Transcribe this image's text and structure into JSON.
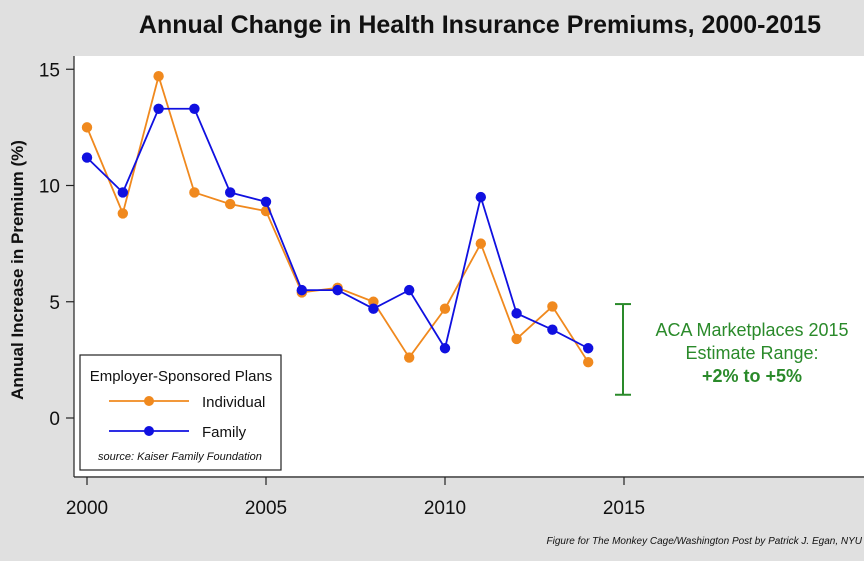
{
  "chart_data": {
    "type": "line",
    "title": "Annual Change in Health Insurance Premiums, 2000-2015",
    "xlabel": "",
    "ylabel": "Annual Increase in Premium (%)",
    "x": [
      2000,
      2001,
      2002,
      2003,
      2004,
      2005,
      2006,
      2007,
      2008,
      2009,
      2010,
      2011,
      2012,
      2013,
      2014
    ],
    "xlim": [
      1999.6,
      2022
    ],
    "ylim": [
      -2.5,
      15.5
    ],
    "xticks": [
      2000,
      2005,
      2010,
      2015
    ],
    "xtick_labels": [
      "2000",
      "2005",
      "2010",
      "2015"
    ],
    "yticks": [
      0,
      5,
      10,
      15
    ],
    "ytick_labels": [
      "0",
      "5",
      "10",
      "15"
    ],
    "grid": false,
    "series": [
      {
        "name": "Individual",
        "color": "#f0891e",
        "values": [
          12.5,
          8.8,
          14.7,
          9.7,
          9.2,
          8.9,
          5.4,
          5.6,
          5.0,
          2.6,
          4.7,
          7.5,
          3.4,
          4.8,
          2.4
        ]
      },
      {
        "name": "Family",
        "color": "#1010e0",
        "values": [
          11.2,
          9.7,
          13.3,
          13.3,
          9.7,
          9.3,
          5.5,
          5.5,
          4.7,
          5.5,
          3.0,
          9.5,
          4.5,
          3.8,
          3.0
        ]
      }
    ],
    "legend": {
      "title": "Employer-Sponsored Plans",
      "placement": "bottom-left",
      "source": "source: Kaiser Family Foundation"
    },
    "annotation": {
      "lines": [
        "ACA Marketplaces 2015",
        "Estimate Range:",
        "+2% to +5%"
      ],
      "color": "#2a8a2a",
      "range_x": 2015,
      "range_drawn": [
        1.0,
        4.9
      ]
    },
    "credit": "Figure for The Monkey Cage/Washington Post by Patrick J. Egan, NYU"
  }
}
